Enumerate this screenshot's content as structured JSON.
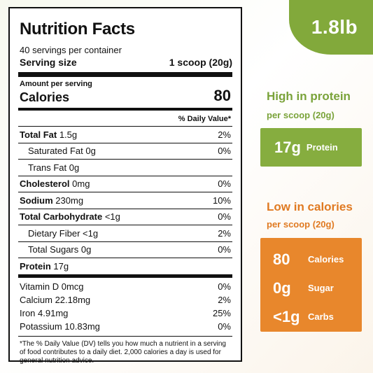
{
  "label": {
    "title": "Nutrition Facts",
    "servings": "40 servings per container",
    "serving_size_label": "Serving size",
    "serving_size_value": "1 scoop (20g)",
    "amount_per_serving": "Amount per serving",
    "calories_label": "Calories",
    "calories_value": "80",
    "daily_value_header": "% Daily Value*",
    "nutrients": [
      {
        "name": "Total Fat",
        "amount": "1.5g",
        "dv": "2%"
      },
      {
        "name": "Saturated Fat",
        "amount": "0g",
        "dv": "0%"
      },
      {
        "name": "Trans Fat",
        "amount": "0g",
        "dv": ""
      },
      {
        "name": "Cholesterol",
        "amount": "0mg",
        "dv": "0%"
      },
      {
        "name": "Sodium",
        "amount": "230mg",
        "dv": "10%"
      },
      {
        "name": "Total Carbohydrate",
        "amount": "<1g",
        "dv": "0%"
      },
      {
        "name": "Dietary Fiber",
        "amount": "<1g",
        "dv": "2%"
      },
      {
        "name": "Total Sugars",
        "amount": "0g",
        "dv": "0%"
      },
      {
        "name": "Protein",
        "amount": "17g",
        "dv": ""
      }
    ],
    "vitamins": [
      {
        "text": "Vitamin D 0mcg",
        "dv": "0%"
      },
      {
        "text": "Calcium 22.18mg",
        "dv": "2%"
      },
      {
        "text": "Iron 4.91mg",
        "dv": "25%"
      },
      {
        "text": "Potassium 10.83mg",
        "dv": "0%"
      }
    ],
    "footnote": "*The % Daily Value (DV) tells you how much a nutrient in a serving of food contributes to a daily diet. 2,000 calories a day is used for general nutrition advice."
  },
  "badge": {
    "weight": "1.8lb"
  },
  "protein_feature": {
    "heading": "High in protein",
    "sub": "per scoop (20g)",
    "value": "17g",
    "unit": "Protein"
  },
  "calorie_feature": {
    "heading": "Low in calories",
    "sub": "per scoop (20g)",
    "items": [
      {
        "value": "80",
        "unit": "Calories"
      },
      {
        "value": "0g",
        "unit": "Sugar"
      },
      {
        "value": "<1g",
        "unit": "Carbs"
      }
    ]
  },
  "colors": {
    "green": "#82a93b",
    "orange": "#e8872c"
  }
}
